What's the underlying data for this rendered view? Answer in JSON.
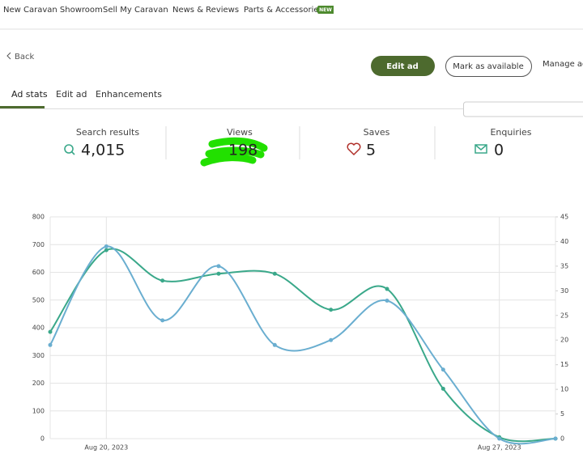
{
  "nav": {
    "items": [
      "New Caravan Showroom",
      "Sell My Caravan",
      "News & Reviews",
      "Parts & Accessories"
    ],
    "badge": "NEW"
  },
  "back": "Back",
  "buttons": [
    "Edit ad",
    "Mark as available",
    "Manage ad"
  ],
  "tabs": [
    "Ad stats",
    "Edit ad",
    "Enhancements"
  ],
  "stats": [
    {
      "label": "Search results",
      "value": "4,015"
    },
    {
      "label": "Views",
      "value": "198"
    },
    {
      "label": "Saves",
      "value": "5"
    },
    {
      "label": "Enquiries",
      "value": "0"
    }
  ],
  "chart_data": {
    "type": "line",
    "categories": [
      null,
      "Aug 20, 2023",
      null,
      null,
      null,
      null,
      null,
      null,
      "Aug 27, 2023",
      null
    ],
    "series": [
      {
        "color": "#3aa88a",
        "values": [
          385,
          680,
          570,
          595,
          595,
          465,
          540,
          180,
          5,
          0
        ]
      },
      {
        "color": "#6aaed0",
        "axis": "y2",
        "values": [
          19,
          39,
          24,
          35,
          19,
          20,
          28,
          14,
          0,
          0
        ]
      }
    ],
    "ylim": [
      0,
      800
    ],
    "yticks": [
      0,
      100,
      200,
      300,
      400,
      500,
      600,
      700,
      800
    ],
    "y2lim": [
      0,
      45
    ],
    "y2ticks": [
      0,
      5,
      10,
      15,
      20,
      25,
      30,
      35,
      40,
      45
    ],
    "grid": true
  }
}
